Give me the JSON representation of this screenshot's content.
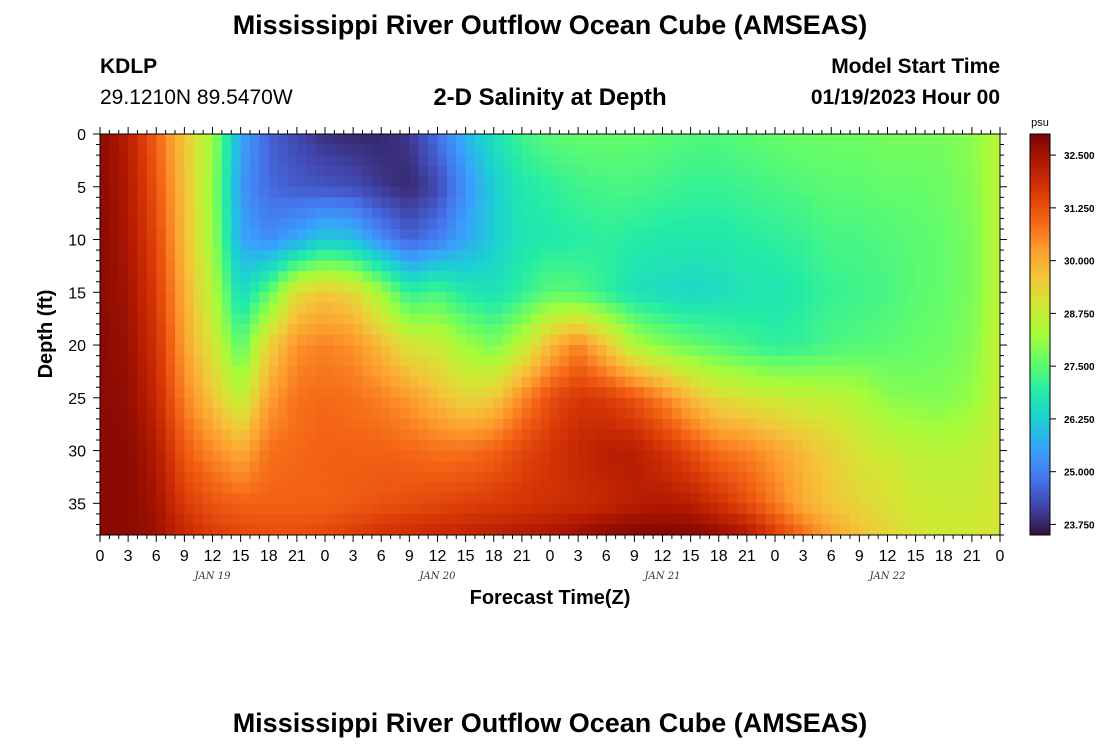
{
  "header": {
    "title": "Mississippi River Outflow Ocean Cube (AMSEAS)",
    "station_id": "KDLP",
    "station_coords": "29.1210N  89.5470W",
    "subtitle": "2-D Salinity at Depth",
    "model_start_label": "Model Start Time",
    "model_start_value": "01/19/2023 Hour 00"
  },
  "footer": {
    "title": "Mississippi River Outflow Ocean Cube (AMSEAS)"
  },
  "chart_data": {
    "type": "heatmap",
    "title": "2-D Salinity at Depth",
    "xlabel": "Forecast Time(Z)",
    "ylabel": "Depth (ft)",
    "x_tick_labels": [
      "0",
      "3",
      "6",
      "9",
      "12",
      "15",
      "18",
      "21",
      "0",
      "3",
      "6",
      "9",
      "12",
      "15",
      "18",
      "21",
      "0",
      "3",
      "6",
      "9",
      "12",
      "15",
      "18",
      "21",
      "0",
      "3",
      "6",
      "9",
      "12",
      "15",
      "18",
      "21",
      "0"
    ],
    "x_date_labels": [
      {
        "label": "JAN 19",
        "hour": 12
      },
      {
        "label": "JAN 20",
        "hour": 36
      },
      {
        "label": "JAN 21",
        "hour": 60
      },
      {
        "label": "JAN 22",
        "hour": 84
      }
    ],
    "xlim": [
      0,
      96
    ],
    "ylim": [
      0,
      38
    ],
    "y_ticks": [
      0,
      5,
      10,
      15,
      20,
      25,
      30,
      35
    ],
    "colorbar": {
      "unit": "psu",
      "min": 23.5,
      "max": 33.0,
      "tick_labels": [
        "32.500",
        "31.250",
        "30.000",
        "28.750",
        "27.500",
        "26.250",
        "25.000",
        "23.750"
      ],
      "tick_values": [
        32.5,
        31.25,
        30.0,
        28.75,
        27.5,
        26.25,
        25.0,
        23.75
      ],
      "colors": [
        "#30123b",
        "#4145ab",
        "#4675ed",
        "#39a2fc",
        "#1bcfd4",
        "#24eca6",
        "#61fc6c",
        "#a4fc3b",
        "#d1e834",
        "#f3c63a",
        "#fe9b2d",
        "#f36315",
        "#d93806",
        "#b11901",
        "#7a0402"
      ]
    },
    "salinity_profiles": {
      "depths_ft": [
        0,
        5,
        10,
        15,
        20,
        25,
        30,
        35,
        38
      ],
      "hours": [
        0,
        3,
        6,
        9,
        12,
        15,
        18,
        21,
        24,
        27,
        30,
        33,
        36,
        39,
        42,
        45,
        48,
        51,
        54,
        57,
        60,
        63,
        66,
        69,
        72,
        75,
        78,
        81,
        84,
        87,
        90,
        93,
        96
      ],
      "values": [
        [
          32.8,
          32.8,
          32.8,
          32.8,
          32.8,
          32.8,
          32.8,
          32.8,
          32.8
        ],
        [
          32.2,
          32.3,
          32.4,
          32.5,
          32.6,
          32.7,
          32.8,
          32.8,
          32.8
        ],
        [
          31.0,
          31.2,
          31.4,
          31.6,
          31.8,
          32.0,
          32.3,
          32.5,
          32.6
        ],
        [
          29.6,
          29.7,
          29.8,
          30.0,
          30.2,
          30.6,
          31.1,
          31.6,
          32.0
        ],
        [
          28.2,
          28.1,
          28.2,
          28.5,
          29.0,
          29.6,
          30.5,
          31.2,
          31.6
        ],
        [
          25.6,
          25.4,
          25.6,
          26.4,
          27.4,
          28.6,
          30.0,
          31.0,
          31.4
        ],
        [
          24.6,
          24.7,
          25.2,
          27.5,
          29.4,
          30.2,
          30.8,
          31.0,
          31.3
        ],
        [
          24.2,
          24.5,
          25.6,
          29.2,
          30.4,
          30.8,
          30.9,
          31.0,
          31.3
        ],
        [
          23.9,
          24.4,
          26.2,
          29.6,
          30.6,
          30.9,
          31.0,
          31.0,
          31.4
        ],
        [
          23.8,
          24.3,
          26.0,
          29.3,
          30.4,
          30.8,
          31.0,
          31.1,
          31.6
        ],
        [
          23.8,
          24.0,
          25.2,
          28.2,
          29.8,
          30.6,
          31.0,
          31.2,
          31.8
        ],
        [
          24.0,
          23.8,
          24.6,
          27.0,
          29.0,
          30.3,
          30.9,
          31.3,
          31.9
        ],
        [
          24.8,
          24.2,
          25.0,
          27.3,
          28.8,
          29.8,
          30.8,
          31.4,
          32.0
        ],
        [
          25.8,
          25.3,
          25.6,
          26.8,
          28.2,
          29.3,
          30.8,
          31.5,
          32.1
        ],
        [
          26.6,
          26.2,
          26.2,
          26.6,
          27.8,
          29.5,
          31.0,
          31.6,
          32.2
        ],
        [
          27.2,
          26.8,
          26.7,
          27.0,
          28.6,
          30.5,
          31.4,
          31.7,
          32.3
        ],
        [
          27.5,
          27.0,
          26.8,
          27.5,
          29.8,
          31.3,
          31.7,
          31.8,
          32.4
        ],
        [
          27.6,
          27.2,
          26.9,
          27.4,
          30.6,
          31.7,
          32.0,
          31.9,
          32.6
        ],
        [
          27.6,
          27.3,
          27.0,
          27.0,
          29.6,
          31.6,
          32.2,
          32.0,
          32.8
        ],
        [
          27.6,
          27.3,
          26.9,
          26.6,
          28.4,
          31.2,
          32.2,
          32.2,
          32.9
        ],
        [
          27.5,
          27.2,
          26.8,
          26.5,
          27.9,
          30.6,
          31.8,
          32.3,
          32.9
        ],
        [
          27.4,
          27.1,
          26.8,
          26.4,
          27.6,
          29.8,
          31.3,
          32.2,
          32.9
        ],
        [
          27.4,
          27.1,
          26.8,
          26.5,
          27.4,
          29.2,
          30.8,
          31.8,
          32.7
        ],
        [
          27.5,
          27.2,
          26.9,
          26.7,
          27.2,
          29.0,
          30.6,
          31.3,
          32.4
        ],
        [
          27.6,
          27.3,
          27.0,
          26.7,
          27.0,
          28.8,
          30.2,
          30.7,
          31.6
        ],
        [
          27.7,
          27.4,
          27.1,
          26.9,
          27.1,
          28.7,
          29.8,
          30.0,
          30.9
        ],
        [
          27.7,
          27.5,
          27.3,
          27.1,
          27.3,
          28.6,
          29.4,
          29.6,
          30.2
        ],
        [
          27.7,
          27.5,
          27.3,
          27.2,
          27.4,
          28.4,
          29.0,
          29.3,
          29.7
        ],
        [
          27.8,
          27.6,
          27.4,
          27.3,
          27.5,
          28.0,
          28.8,
          29.1,
          29.3
        ],
        [
          27.8,
          27.6,
          27.5,
          27.5,
          27.6,
          27.9,
          28.6,
          28.9,
          29.0
        ],
        [
          27.8,
          27.7,
          27.6,
          27.6,
          27.7,
          27.9,
          28.5,
          28.8,
          28.9
        ],
        [
          28.0,
          27.9,
          27.8,
          27.8,
          27.9,
          28.1,
          28.6,
          28.8,
          28.9
        ],
        [
          28.6,
          28.6,
          28.6,
          28.6,
          28.7,
          28.8,
          28.9,
          29.0,
          29.0
        ]
      ]
    }
  }
}
